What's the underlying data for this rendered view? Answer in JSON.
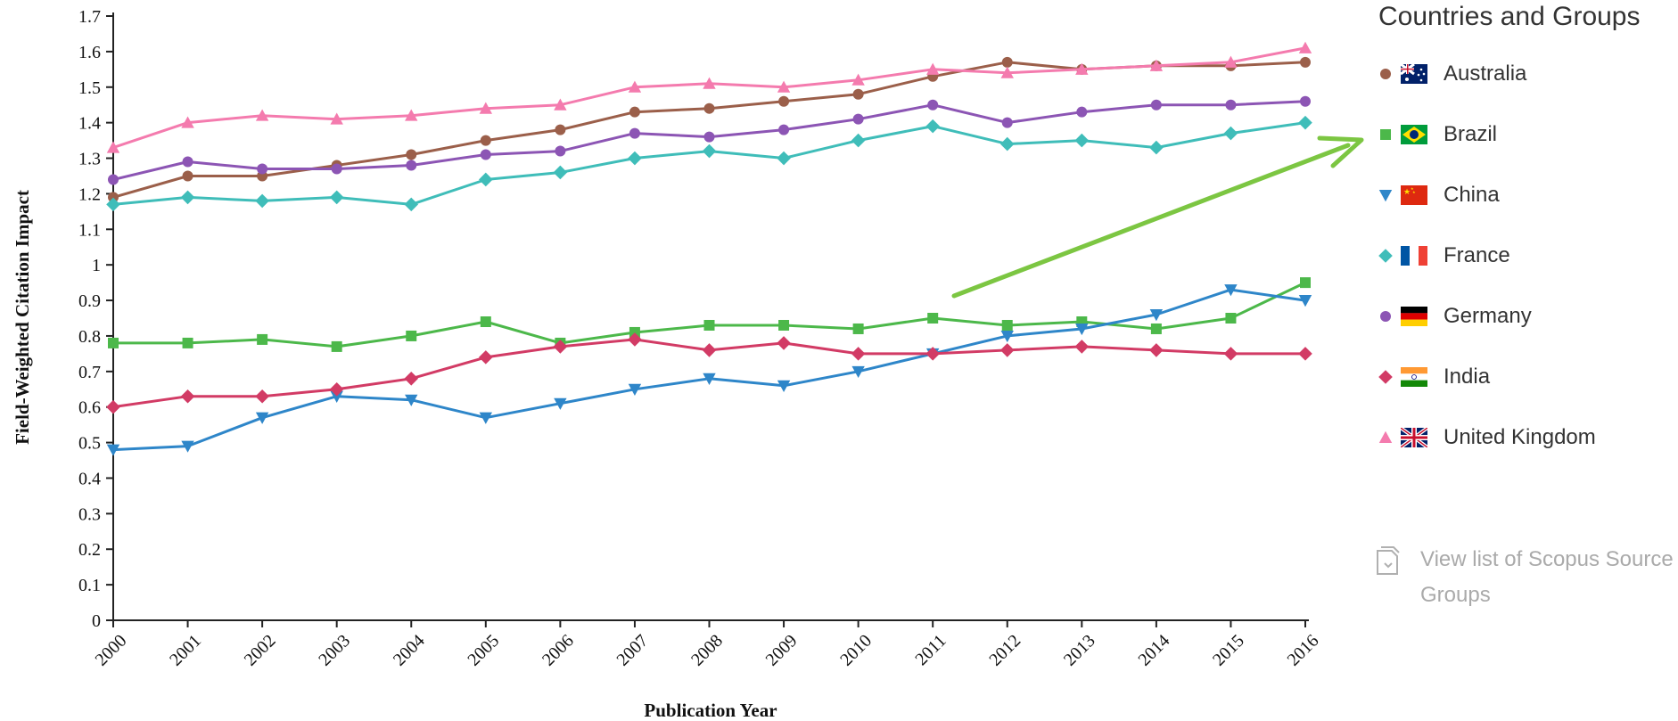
{
  "chart_data": {
    "type": "line",
    "title": "",
    "xlabel": "Publication Year",
    "ylabel": "Field-Weighted Citation Impact",
    "ylim": [
      0,
      1.7
    ],
    "yticks": [
      "0",
      "0.1",
      "0.2",
      "0.3",
      "0.4",
      "0.5",
      "0.6",
      "0.7",
      "0.8",
      "0.9",
      "1",
      "1.1",
      "1.2",
      "1.3",
      "1.4",
      "1.5",
      "1.6",
      "1.7"
    ],
    "x": [
      "2000",
      "2001",
      "2002",
      "2003",
      "2004",
      "2005",
      "2006",
      "2007",
      "2008",
      "2009",
      "2010",
      "2011",
      "2012",
      "2013",
      "2014",
      "2015",
      "2016"
    ],
    "grid": false,
    "legend_position": "right",
    "annotation": "green arrow pointing to Brazil in legend",
    "series": [
      {
        "name": "Australia",
        "color": "#9b5f4a",
        "marker": "circle",
        "flag": "australia-flag",
        "values": [
          1.19,
          1.25,
          1.25,
          1.28,
          1.31,
          1.35,
          1.38,
          1.43,
          1.44,
          1.46,
          1.48,
          1.53,
          1.57,
          1.55,
          1.56,
          1.56,
          1.57
        ]
      },
      {
        "name": "Brazil",
        "color": "#4cb84a",
        "marker": "square",
        "flag": "brazil-flag",
        "values": [
          0.78,
          0.78,
          0.79,
          0.77,
          0.8,
          0.84,
          0.78,
          0.81,
          0.83,
          0.83,
          0.82,
          0.85,
          0.83,
          0.84,
          0.82,
          0.85,
          0.95
        ]
      },
      {
        "name": "China",
        "color": "#2e86c9",
        "marker": "triangle-down",
        "flag": "china-flag",
        "values": [
          0.48,
          0.49,
          0.57,
          0.63,
          0.62,
          0.57,
          0.61,
          0.65,
          0.68,
          0.66,
          0.7,
          0.75,
          0.8,
          0.82,
          0.86,
          0.93,
          0.9
        ]
      },
      {
        "name": "France",
        "color": "#3fbdb9",
        "marker": "diamond",
        "flag": "france-flag",
        "values": [
          1.17,
          1.19,
          1.18,
          1.19,
          1.17,
          1.24,
          1.26,
          1.3,
          1.32,
          1.3,
          1.35,
          1.39,
          1.34,
          1.35,
          1.33,
          1.37,
          1.4
        ]
      },
      {
        "name": "Germany",
        "color": "#8c55b4",
        "marker": "circle",
        "flag": "germany-flag",
        "values": [
          1.24,
          1.29,
          1.27,
          1.27,
          1.28,
          1.31,
          1.32,
          1.37,
          1.36,
          1.38,
          1.41,
          1.45,
          1.4,
          1.43,
          1.45,
          1.45,
          1.46
        ]
      },
      {
        "name": "India",
        "color": "#d23b65",
        "marker": "diamond",
        "flag": "india-flag",
        "values": [
          0.6,
          0.63,
          0.63,
          0.65,
          0.68,
          0.74,
          0.77,
          0.79,
          0.76,
          0.78,
          0.75,
          0.75,
          0.76,
          0.77,
          0.76,
          0.75,
          0.75
        ]
      },
      {
        "name": "United Kingdom",
        "color": "#f47bae",
        "marker": "triangle-up",
        "flag": "uk-flag",
        "values": [
          1.33,
          1.4,
          1.42,
          1.41,
          1.42,
          1.44,
          1.45,
          1.5,
          1.51,
          1.5,
          1.52,
          1.55,
          1.54,
          1.55,
          1.56,
          1.57,
          1.61
        ]
      }
    ]
  },
  "legend": {
    "title": "Countries and Groups"
  },
  "view_list_link": {
    "line1": "View list of Scopus Source",
    "line2": "Groups",
    "icon": "document-icon"
  },
  "colors": {
    "arrow": "#7cc642",
    "axis": "#222222",
    "muted_text": "#aaaaaa"
  }
}
